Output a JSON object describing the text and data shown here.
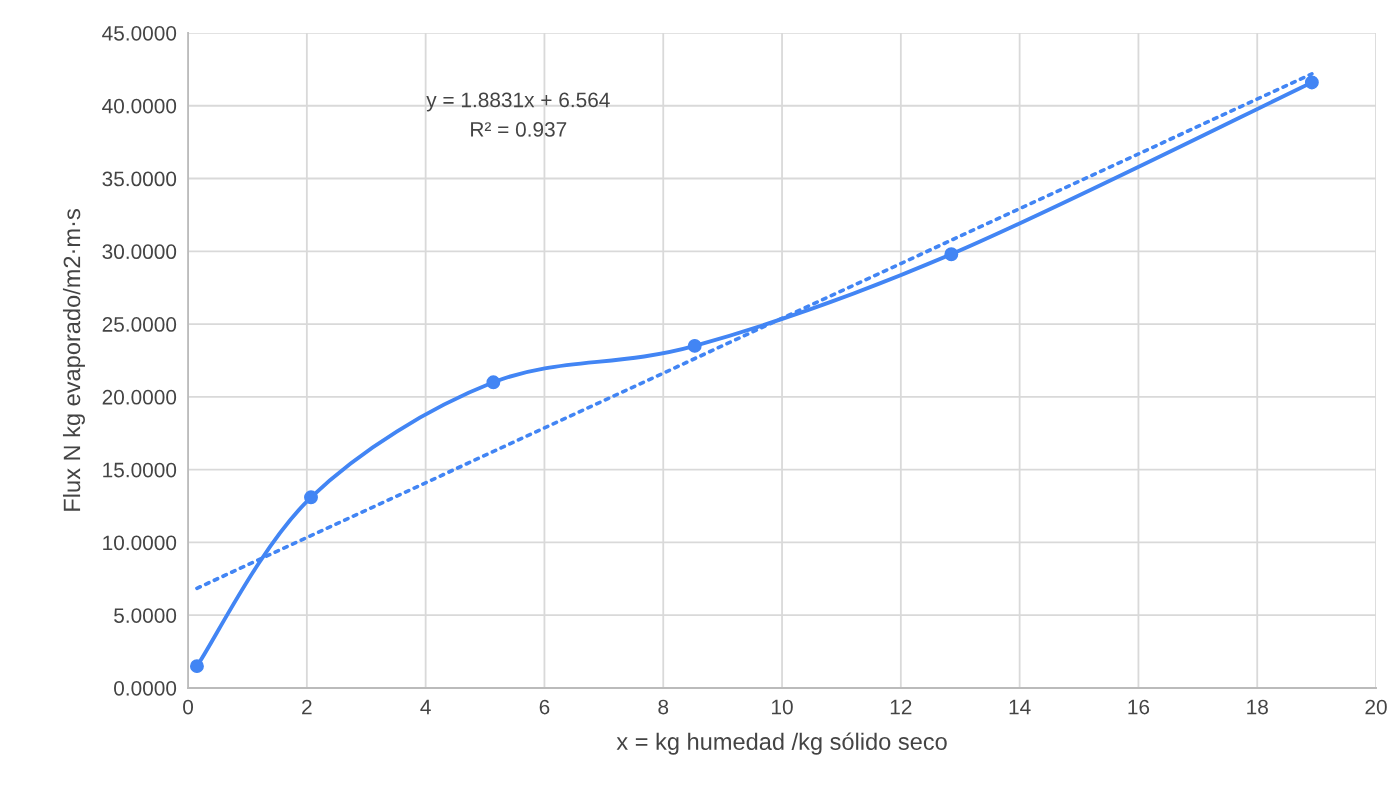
{
  "chart_data": {
    "type": "line",
    "xlabel": "x = kg humedad /kg sólido seco",
    "ylabel": "Flux N kg evaporado/m2·m·s",
    "annotations": [
      "y = 1.8831x + 6.564",
      "R² = 0.937"
    ],
    "xlim": [
      0,
      20
    ],
    "xticks": [
      0,
      2,
      4,
      6,
      8,
      10,
      12,
      14,
      16,
      18,
      20
    ],
    "ylim": [
      0,
      45
    ],
    "yticks": [
      {
        "value": 0,
        "label": "0.0000"
      },
      {
        "value": 5,
        "label": "5.0000"
      },
      {
        "value": 10,
        "label": "10.0000"
      },
      {
        "value": 15,
        "label": "15.0000"
      },
      {
        "value": 20,
        "label": "20.0000"
      },
      {
        "value": 25,
        "label": "25.0000"
      },
      {
        "value": 30,
        "label": "30.0000"
      },
      {
        "value": 35,
        "label": "35.0000"
      },
      {
        "value": 40,
        "label": "40.0000"
      },
      {
        "value": 45,
        "label": "45.0000"
      }
    ],
    "grid": true,
    "series": [
      {
        "color": "#4285f4",
        "marker": "circle",
        "line_style": "solid",
        "x": [
          0.15,
          2.07,
          5.14,
          8.53,
          12.85,
          18.92
        ],
        "values": [
          1.5,
          13.1,
          21.0,
          23.5,
          29.8,
          41.6
        ]
      },
      {
        "type": "line",
        "color": "#4285f4",
        "marker": "none",
        "line_style": "dotted",
        "x": [
          0.15,
          18.92
        ],
        "values": [
          6.85,
          42.19
        ]
      }
    ]
  }
}
